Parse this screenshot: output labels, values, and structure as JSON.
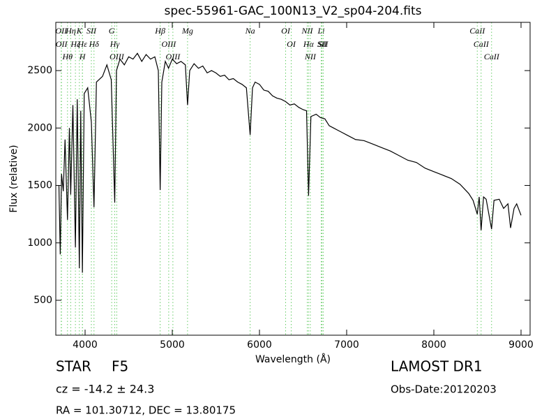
{
  "chart_data": {
    "type": "line",
    "title": "spec-55961-GAC_100N13_V2_sp04-204.fits",
    "xlabel": "Wavelength (Å)",
    "ylabel": "Flux (relative)",
    "xlim": [
      3664,
      9104
    ],
    "ylim": [
      196,
      2920
    ],
    "xticks": [
      4000,
      5000,
      6000,
      7000,
      8000,
      9000
    ],
    "yticks": [
      500,
      1000,
      1500,
      2000,
      2500
    ],
    "x": [
      3700,
      3715,
      3730,
      3750,
      3770,
      3798,
      3820,
      3835,
      3860,
      3889,
      3910,
      3934,
      3950,
      3969,
      3990,
      4030,
      4072,
      4102,
      4130,
      4200,
      4250,
      4300,
      4340,
      4360,
      4400,
      4450,
      4500,
      4550,
      4600,
      4650,
      4700,
      4750,
      4800,
      4840,
      4861,
      4880,
      4920,
      4957,
      5000,
      5050,
      5100,
      5150,
      5175,
      5200,
      5250,
      5300,
      5350,
      5400,
      5450,
      5500,
      5550,
      5600,
      5650,
      5700,
      5750,
      5800,
      5850,
      5893,
      5920,
      5950,
      6000,
      6050,
      6100,
      6150,
      6200,
      6250,
      6300,
      6350,
      6400,
      6450,
      6500,
      6540,
      6563,
      6590,
      6650,
      6700,
      6750,
      6800,
      6850,
      6900,
      6950,
      7000,
      7100,
      7200,
      7300,
      7400,
      7500,
      7600,
      7700,
      7800,
      7900,
      8000,
      8100,
      8200,
      8300,
      8400,
      8450,
      8498,
      8520,
      8542,
      8570,
      8600,
      8662,
      8690,
      8750,
      8800,
      8850,
      8880,
      8920,
      8950,
      9000
    ],
    "series": [
      {
        "color": "#000000",
        "values": [
          1500,
          900,
          1600,
          1450,
          1900,
          1200,
          2000,
          1420,
          2200,
          960,
          2250,
          780,
          2150,
          740,
          2300,
          2350,
          2050,
          1310,
          2400,
          2450,
          2550,
          2420,
          1350,
          2500,
          2600,
          2550,
          2620,
          2600,
          2650,
          2580,
          2640,
          2600,
          2620,
          2500,
          1460,
          2400,
          2580,
          2520,
          2600,
          2560,
          2580,
          2550,
          2200,
          2500,
          2560,
          2520,
          2540,
          2480,
          2500,
          2480,
          2450,
          2460,
          2420,
          2430,
          2400,
          2380,
          2350,
          1940,
          2350,
          2400,
          2380,
          2330,
          2320,
          2280,
          2260,
          2250,
          2230,
          2200,
          2210,
          2180,
          2160,
          2150,
          1410,
          2100,
          2120,
          2090,
          2080,
          2020,
          2000,
          1980,
          1960,
          1940,
          1900,
          1890,
          1860,
          1830,
          1800,
          1760,
          1720,
          1700,
          1650,
          1620,
          1590,
          1560,
          1510,
          1430,
          1370,
          1250,
          1400,
          1110,
          1400,
          1380,
          1120,
          1370,
          1380,
          1300,
          1340,
          1130,
          1300,
          1340,
          1240
        ]
      }
    ],
    "line_color": "#66cc66",
    "spectral_lines": [
      {
        "label": "OII",
        "x": 3726
      },
      {
        "label": "OII",
        "x": 3729
      },
      {
        "label": "Hθ",
        "x": 3798
      },
      {
        "label": "Hη",
        "x": 3835
      },
      {
        "label": "Hζ",
        "x": 3889
      },
      {
        "label": "K",
        "x": 3934
      },
      {
        "label": "H",
        "x": 3969
      },
      {
        "label": "Hε",
        "x": 3970
      },
      {
        "label": "SII",
        "x": 4072
      },
      {
        "label": "Hδ",
        "x": 4102
      },
      {
        "label": "G",
        "x": 4305
      },
      {
        "label": "Hγ",
        "x": 4340
      },
      {
        "label": "OIII",
        "x": 4363
      },
      {
        "label": "Hβ",
        "x": 4861
      },
      {
        "label": "OIII",
        "x": 4959
      },
      {
        "label": "OIII",
        "x": 5007
      },
      {
        "label": "Mg",
        "x": 5175
      },
      {
        "label": "Na",
        "x": 5893
      },
      {
        "label": "OI",
        "x": 6300
      },
      {
        "label": "OI",
        "x": 6364
      },
      {
        "label": "NII",
        "x": 6548
      },
      {
        "label": "Hα",
        "x": 6563
      },
      {
        "label": "NII",
        "x": 6583
      },
      {
        "label": "Li",
        "x": 6708
      },
      {
        "label": "SII",
        "x": 6717
      },
      {
        "label": "SII",
        "x": 6731
      },
      {
        "label": "CaII",
        "x": 8498
      },
      {
        "label": "CaII",
        "x": 8542
      },
      {
        "label": "CaII",
        "x": 8662
      }
    ],
    "info": {
      "object_class": "STAR",
      "subclass": "F5",
      "redshift": "cz = -14.2 ± 24.3",
      "coords": "RA = 101.30712, DEC = 13.80175",
      "survey": "LAMOST DR1",
      "obs_date": "Obs-Date:20120203"
    }
  }
}
